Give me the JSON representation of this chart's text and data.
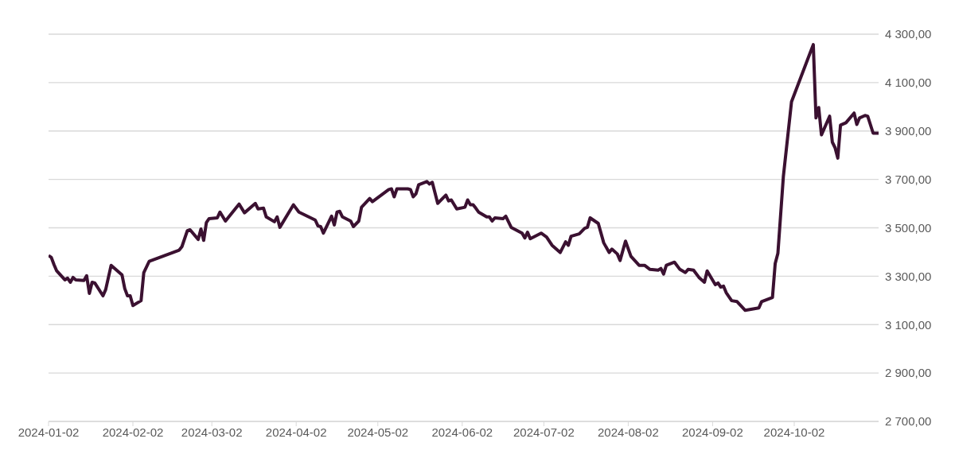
{
  "chart_data": {
    "type": "line",
    "color": "#3b1131",
    "grid": "y",
    "marker": "none",
    "line_style": "solid",
    "xlim": [
      "2024-01-02",
      "2024-11-02"
    ],
    "xticks": [
      "2024-01-02",
      "2024-02-02",
      "2024-03-02",
      "2024-04-02",
      "2024-05-02",
      "2024-06-02",
      "2024-07-02",
      "2024-08-02",
      "2024-09-02",
      "2024-10-02"
    ],
    "ylim": [
      2700,
      4300
    ],
    "yticks": [
      {
        "value": 2700,
        "label": "2 700,00"
      },
      {
        "value": 2900,
        "label": "2 900,00"
      },
      {
        "value": 3100,
        "label": "3 100,00"
      },
      {
        "value": 3300,
        "label": "3 300,00"
      },
      {
        "value": 3500,
        "label": "3 500,00"
      },
      {
        "value": 3700,
        "label": "3 700,00"
      },
      {
        "value": 3900,
        "label": "3 900,00"
      },
      {
        "value": 4100,
        "label": "4 100,00"
      },
      {
        "value": 4300,
        "label": "4 300,00"
      }
    ],
    "x": [
      "2024-01-02",
      "2024-01-03",
      "2024-01-04",
      "2024-01-05",
      "2024-01-08",
      "2024-01-09",
      "2024-01-10",
      "2024-01-11",
      "2024-01-12",
      "2024-01-15",
      "2024-01-16",
      "2024-01-17",
      "2024-01-18",
      "2024-01-19",
      "2024-01-22",
      "2024-01-23",
      "2024-01-25",
      "2024-01-29",
      "2024-01-30",
      "2024-01-31",
      "2024-02-01",
      "2024-02-02",
      "2024-02-05",
      "2024-02-06",
      "2024-02-08",
      "2024-02-19",
      "2024-02-20",
      "2024-02-22",
      "2024-02-23",
      "2024-02-26",
      "2024-02-27",
      "2024-02-28",
      "2024-02-29",
      "2024-03-01",
      "2024-03-04",
      "2024-03-05",
      "2024-03-07",
      "2024-03-12",
      "2024-03-14",
      "2024-03-18",
      "2024-03-19",
      "2024-03-21",
      "2024-03-22",
      "2024-03-25",
      "2024-03-26",
      "2024-03-27",
      "2024-04-01",
      "2024-04-03",
      "2024-04-09",
      "2024-04-10",
      "2024-04-11",
      "2024-04-12",
      "2024-04-15",
      "2024-04-16",
      "2024-04-17",
      "2024-04-18",
      "2024-04-19",
      "2024-04-22",
      "2024-04-23",
      "2024-04-25",
      "2024-04-26",
      "2024-04-29",
      "2024-04-30",
      "2024-05-06",
      "2024-05-07",
      "2024-05-08",
      "2024-05-09",
      "2024-05-13",
      "2024-05-14",
      "2024-05-15",
      "2024-05-16",
      "2024-05-17",
      "2024-05-20",
      "2024-05-21",
      "2024-05-22",
      "2024-05-24",
      "2024-05-27",
      "2024-05-28",
      "2024-05-29",
      "2024-05-31",
      "2024-06-03",
      "2024-06-04",
      "2024-06-05",
      "2024-06-06",
      "2024-06-07",
      "2024-06-08",
      "2024-06-11",
      "2024-06-12",
      "2024-06-13",
      "2024-06-14",
      "2024-06-17",
      "2024-06-18",
      "2024-06-20",
      "2024-06-24",
      "2024-06-25",
      "2024-06-26",
      "2024-06-27",
      "2024-07-01",
      "2024-07-03",
      "2024-07-05",
      "2024-07-08",
      "2024-07-10",
      "2024-07-11",
      "2024-07-12",
      "2024-07-15",
      "2024-07-17",
      "2024-07-18",
      "2024-07-19",
      "2024-07-22",
      "2024-07-24",
      "2024-07-26",
      "2024-07-27",
      "2024-07-29",
      "2024-07-30",
      "2024-08-01",
      "2024-08-03",
      "2024-08-06",
      "2024-08-08",
      "2024-08-10",
      "2024-08-13",
      "2024-08-14",
      "2024-08-15",
      "2024-08-16",
      "2024-08-19",
      "2024-08-21",
      "2024-08-23",
      "2024-08-24",
      "2024-08-26",
      "2024-08-28",
      "2024-08-30",
      "2024-08-31",
      "2024-09-03",
      "2024-09-04",
      "2024-09-05",
      "2024-09-06",
      "2024-09-07",
      "2024-09-09",
      "2024-09-11",
      "2024-09-14",
      "2024-09-19",
      "2024-09-20",
      "2024-09-24",
      "2024-09-25",
      "2024-09-26",
      "2024-09-28",
      "2024-10-01",
      "2024-10-09",
      "2024-10-10",
      "2024-10-11",
      "2024-10-12",
      "2024-10-15",
      "2024-10-16",
      "2024-10-17",
      "2024-10-18",
      "2024-10-19",
      "2024-10-21",
      "2024-10-24",
      "2024-10-25",
      "2024-10-26",
      "2024-10-28",
      "2024-10-29",
      "2024-10-31",
      "2024-11-02"
    ],
    "values": [
      3385,
      3378,
      3348,
      3322,
      3285,
      3292,
      3275,
      3295,
      3285,
      3282,
      3302,
      3229,
      3275,
      3272,
      3219,
      3245,
      3345,
      3305,
      3249,
      3219,
      3219,
      3179,
      3199,
      3315,
      3362,
      3408,
      3422,
      3488,
      3492,
      3452,
      3495,
      3448,
      3522,
      3538,
      3541,
      3565,
      3528,
      3598,
      3562,
      3601,
      3578,
      3581,
      3545,
      3525,
      3545,
      3502,
      3595,
      3565,
      3532,
      3508,
      3505,
      3478,
      3548,
      3512,
      3565,
      3568,
      3545,
      3528,
      3505,
      3528,
      3585,
      3621,
      3608,
      3658,
      3661,
      3628,
      3661,
      3661,
      3658,
      3628,
      3641,
      3678,
      3691,
      3681,
      3688,
      3601,
      3635,
      3611,
      3615,
      3578,
      3585,
      3615,
      3595,
      3595,
      3581,
      3565,
      3545,
      3545,
      3528,
      3541,
      3538,
      3548,
      3502,
      3478,
      3458,
      3482,
      3455,
      3478,
      3462,
      3428,
      3398,
      3442,
      3428,
      3465,
      3475,
      3498,
      3502,
      3541,
      3518,
      3438,
      3398,
      3412,
      3392,
      3365,
      3445,
      3382,
      3345,
      3345,
      3328,
      3325,
      3332,
      3309,
      3345,
      3358,
      3328,
      3315,
      3328,
      3325,
      3295,
      3275,
      3322,
      3265,
      3272,
      3255,
      3259,
      3232,
      3199,
      3195,
      3159,
      3169,
      3195,
      3212,
      3352,
      3395,
      3711,
      4021,
      4257,
      3954,
      3997,
      3884,
      3961,
      3854,
      3831,
      3788,
      3924,
      3934,
      3974,
      3927,
      3954,
      3964,
      3961,
      3891,
      3891
    ]
  }
}
